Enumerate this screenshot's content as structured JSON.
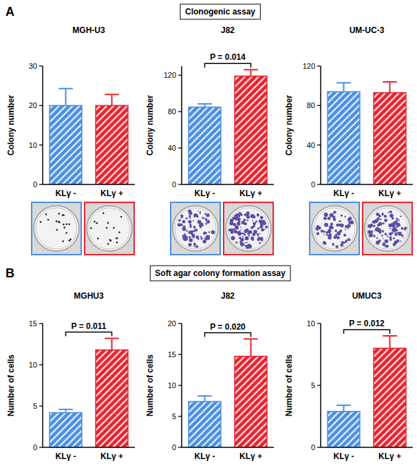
{
  "panels": [
    {
      "label": "A",
      "title": "Clonogenic assay"
    },
    {
      "label": "B",
      "title": "Soft agar colony formation assay"
    }
  ],
  "chart_data": [
    {
      "type": "bar",
      "title": "MGH-U3",
      "y_label": "Colony number",
      "categories": [
        "KLγ -",
        "KLγ +"
      ],
      "values": [
        20,
        20
      ],
      "errors": [
        4.3,
        2.8
      ],
      "colors": [
        "#4a8fe0",
        "#e8232f"
      ],
      "ylim": [
        0,
        30
      ],
      "yticks": [
        0,
        10,
        20,
        30
      ]
    },
    {
      "type": "bar",
      "title": "J82",
      "y_label": "Colony number",
      "categories": [
        "KLγ -",
        "KLγ +"
      ],
      "values": [
        85,
        119
      ],
      "errors": [
        3.5,
        7
      ],
      "colors": [
        "#4a8fe0",
        "#e8232f"
      ],
      "ylim": [
        0,
        130
      ],
      "yticks": [
        0,
        40,
        80,
        120
      ],
      "annotation": "P = 0.014"
    },
    {
      "type": "bar",
      "title": "UM-UC-3",
      "y_label": "Colony number",
      "categories": [
        "KLγ -",
        "KLγ +"
      ],
      "values": [
        94,
        93
      ],
      "errors": [
        9,
        11
      ],
      "colors": [
        "#4a8fe0",
        "#e8232f"
      ],
      "ylim": [
        0,
        120
      ],
      "yticks": [
        0,
        40,
        80,
        120
      ]
    },
    {
      "type": "bar",
      "title": "MGHU3",
      "y_label": "Number of cells",
      "categories": [
        "KLγ -",
        "KLγ +"
      ],
      "values": [
        4.2,
        11.8
      ],
      "errors": [
        0.4,
        1.4
      ],
      "colors": [
        "#4a8fe0",
        "#e8232f"
      ],
      "ylim": [
        0,
        15
      ],
      "yticks": [
        0,
        5,
        10,
        15
      ],
      "annotation": "P = 0.011"
    },
    {
      "type": "bar",
      "title": "J82",
      "y_label": "Number of cells",
      "categories": [
        "KLγ -",
        "KLγ +"
      ],
      "values": [
        7.4,
        14.7
      ],
      "errors": [
        0.9,
        2.8
      ],
      "colors": [
        "#4a8fe0",
        "#e8232f"
      ],
      "ylim": [
        0,
        20
      ],
      "yticks": [
        0,
        5,
        10,
        15,
        20
      ],
      "annotation": "P = 0.020"
    },
    {
      "type": "bar",
      "title": "UMUC3",
      "y_label": "Number of cells",
      "categories": [
        "KLγ -",
        "KLγ +"
      ],
      "values": [
        2.9,
        8
      ],
      "errors": [
        0.5,
        1
      ],
      "colors": [
        "#4a8fe0",
        "#e8232f"
      ],
      "ylim": [
        0,
        10
      ],
      "yticks": [
        0,
        5,
        10
      ],
      "annotation": "P = 0.012"
    }
  ]
}
